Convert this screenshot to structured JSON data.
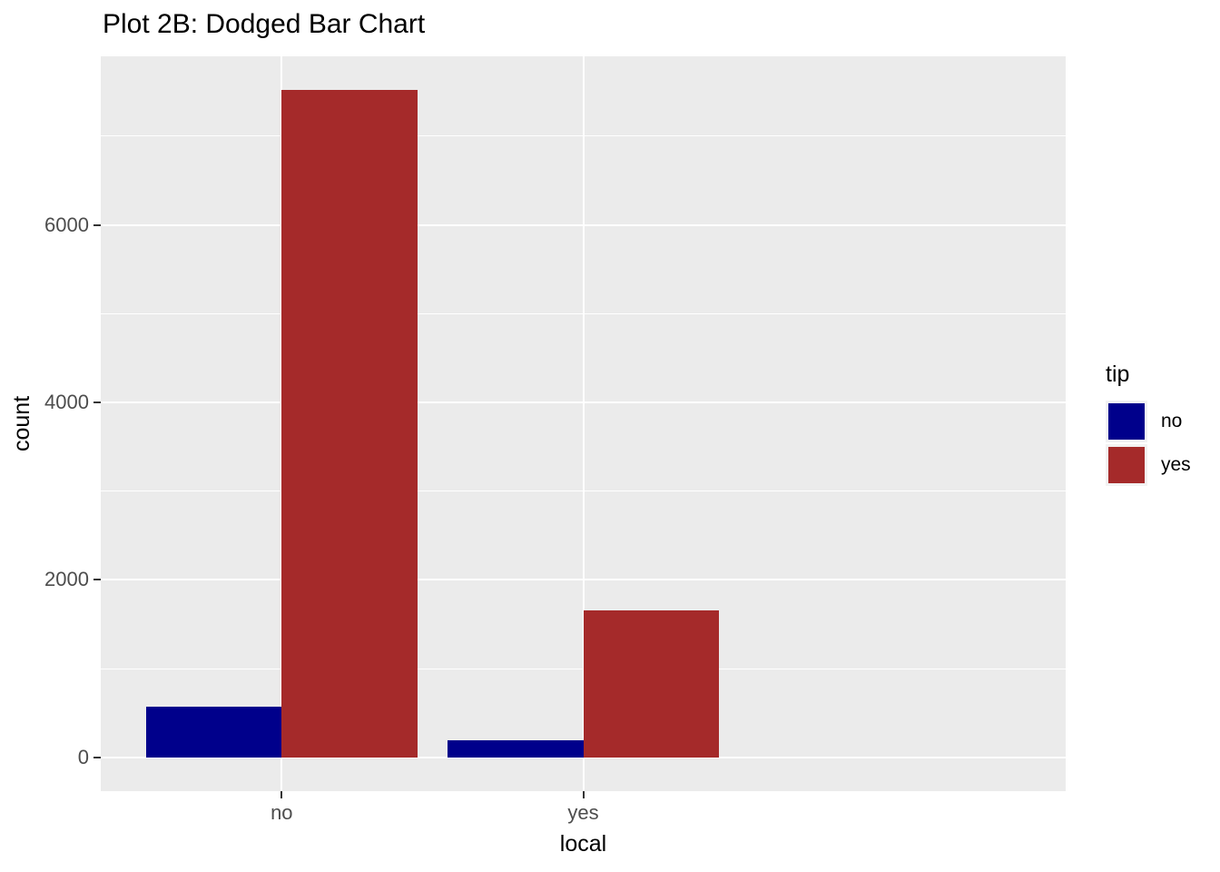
{
  "title": "Plot 2B: Dodged Bar Chart",
  "chart_data": {
    "type": "bar",
    "mode": "dodged",
    "title": "Plot 2B: Dodged Bar Chart",
    "xlabel": "local",
    "ylabel": "count",
    "categories": [
      "no",
      "yes"
    ],
    "series": [
      {
        "name": "no",
        "color": "#00008B",
        "values": [
          570,
          195
        ]
      },
      {
        "name": "yes",
        "color": "#A52A2A",
        "values": [
          7520,
          1660
        ]
      }
    ],
    "legend_title": "tip",
    "legend_position": "right",
    "yticks": [
      0,
      2000,
      4000,
      6000
    ],
    "yticks_minor": [
      1000,
      3000,
      5000,
      7000
    ],
    "ylim": [
      -380,
      7900
    ],
    "grid": true,
    "bar_width": 0.9,
    "panel_bg": "#EBEBEB",
    "grid_color": "#FFFFFF",
    "tick_color": "#333333",
    "tick_label_color": "#4D4D4D"
  }
}
